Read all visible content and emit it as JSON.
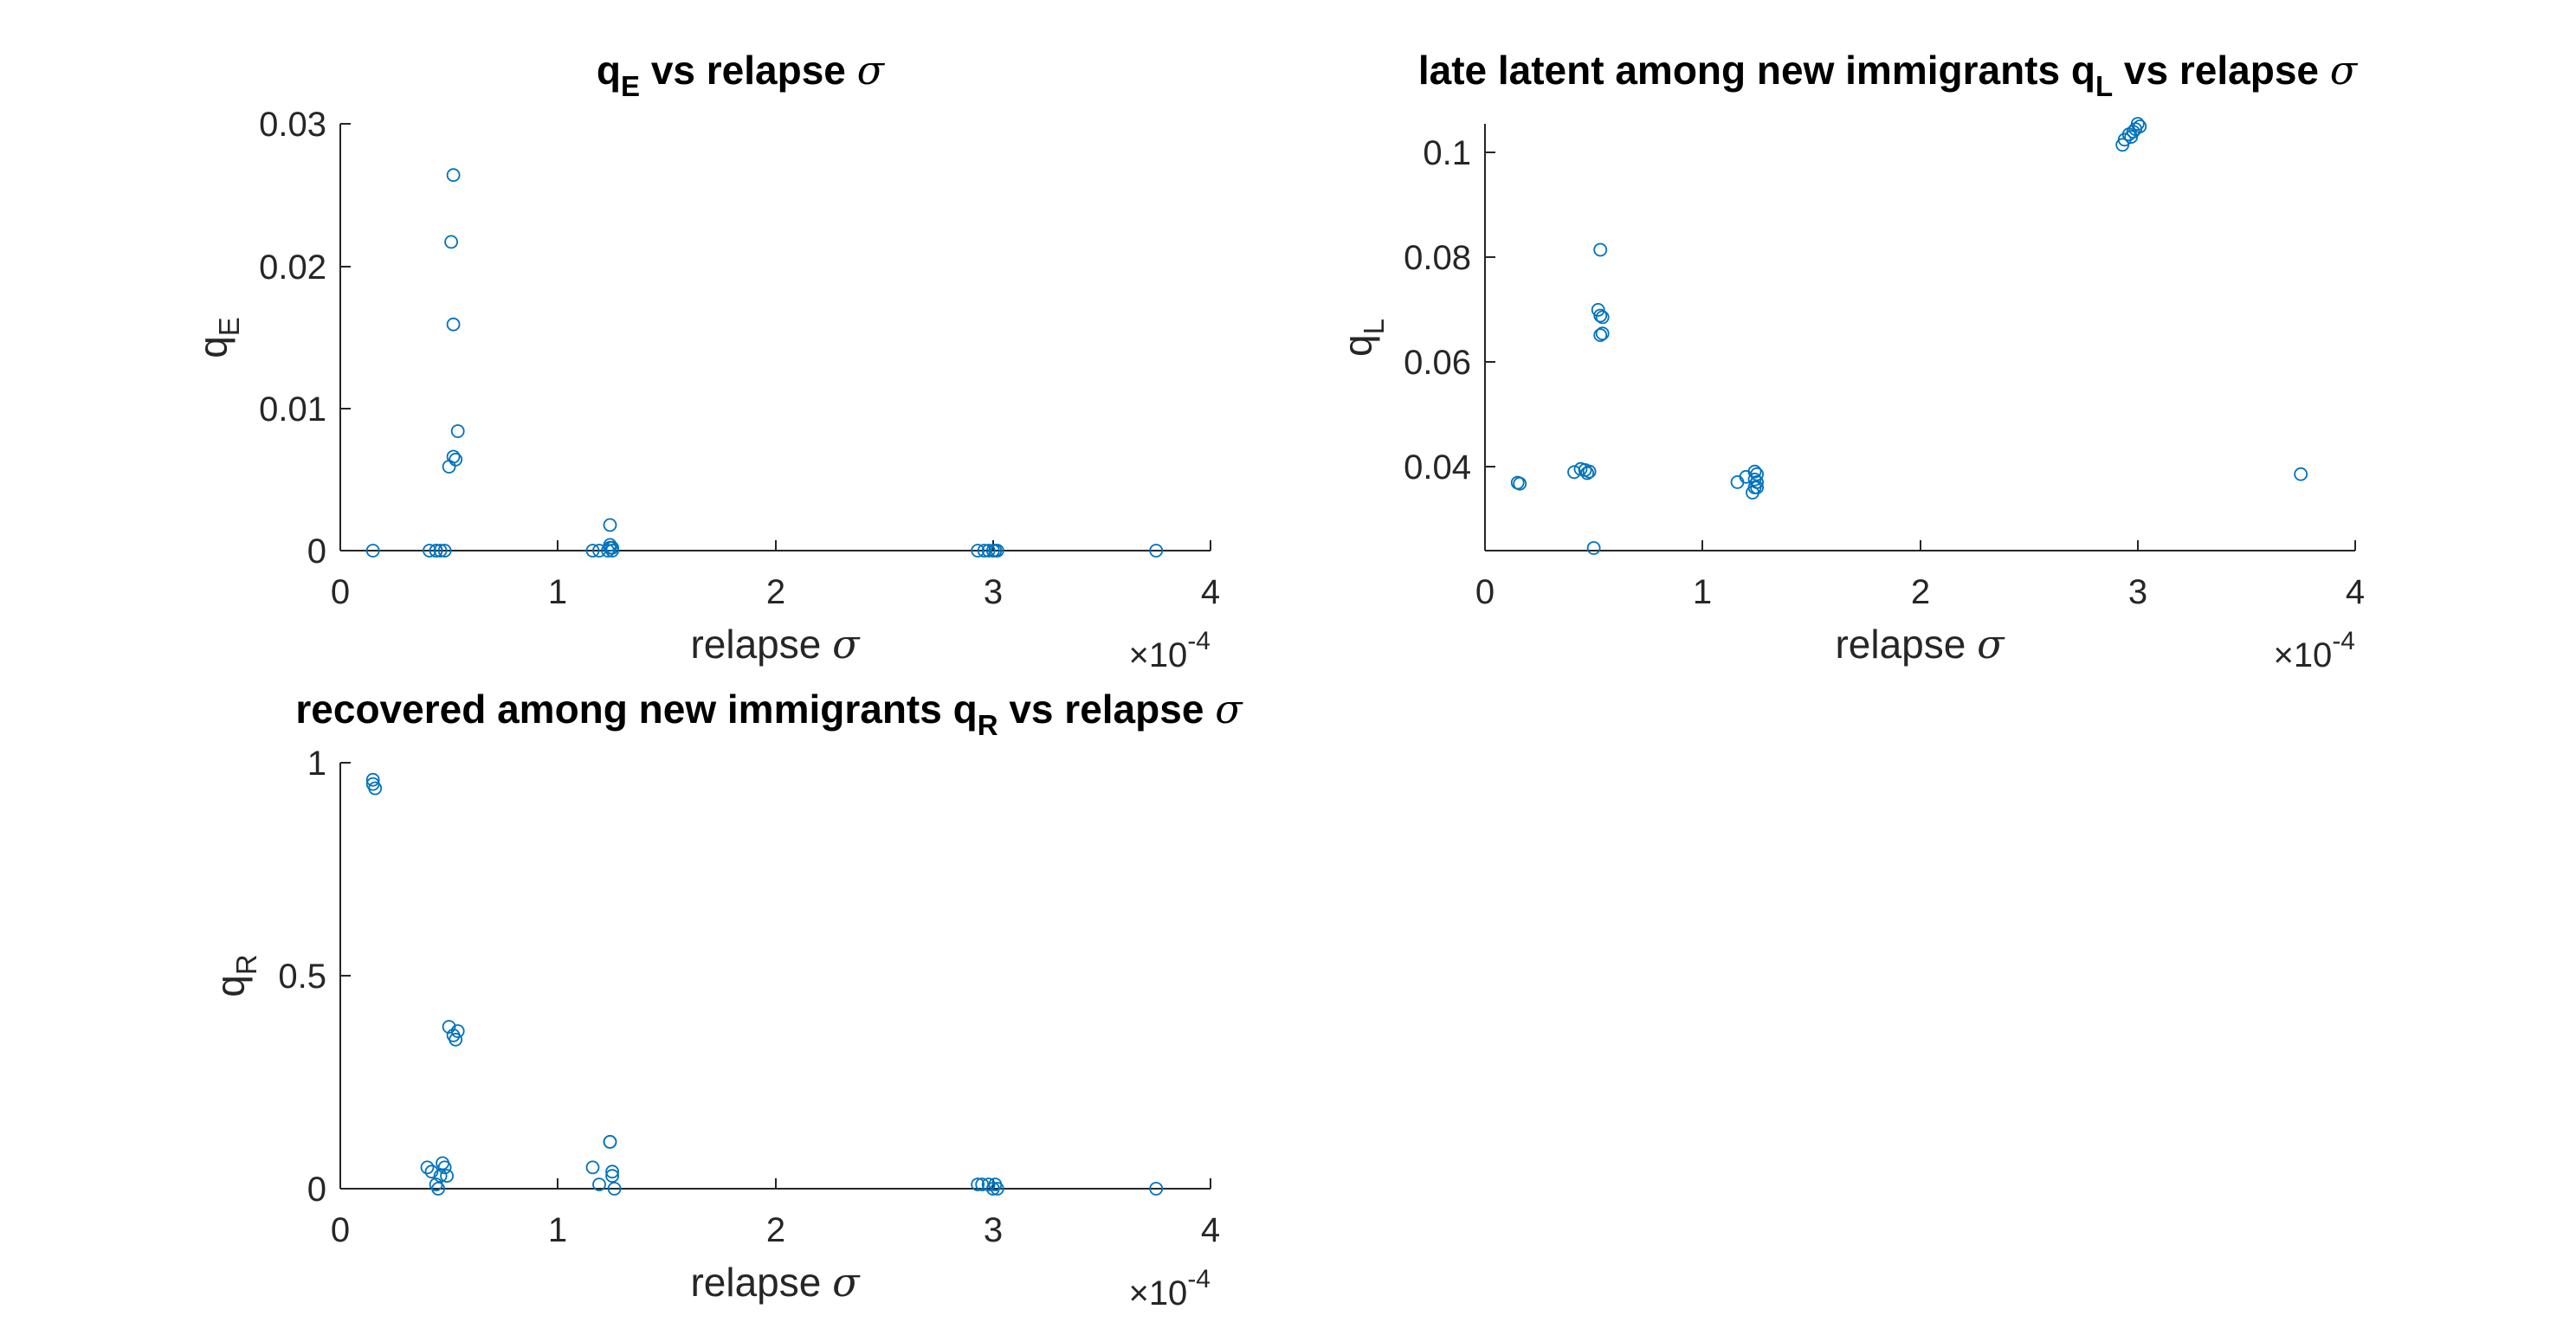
{
  "chart_data": [
    {
      "type": "scatter",
      "title": {
        "main": "q",
        "sub": "E",
        "rest": " vs relapse ",
        "greek": "σ"
      },
      "xlabel": {
        "text": "relapse ",
        "greek": "σ"
      },
      "ylabel": {
        "main": "q",
        "sub": "E"
      },
      "x_multiplier": {
        "base": "×10",
        "exp": "-4"
      },
      "xlim": [
        0,
        4
      ],
      "ylim": [
        0,
        0.03
      ],
      "xticks": [
        "0",
        "1",
        "2",
        "3",
        "4"
      ],
      "yticks": [
        "0",
        "0.01",
        "0.02",
        "0.03"
      ],
      "marker_color": "#0072BD",
      "x": [
        0.15,
        0.41,
        0.44,
        0.46,
        0.48,
        0.44,
        0.5,
        0.52,
        0.53,
        0.54,
        0.52,
        0.51,
        0.52,
        1.16,
        1.19,
        1.23,
        1.24,
        1.24,
        1.25,
        1.24,
        1.25,
        2.93,
        2.96,
        2.98,
        3.0,
        3.01,
        3.02,
        3.75
      ],
      "y": [
        0,
        0,
        0,
        0,
        0,
        0,
        0.0059,
        0.0066,
        0.0064,
        0.0084,
        0.0159,
        0.0217,
        0.0264,
        0,
        0,
        0,
        0.0002,
        0.0004,
        0.0002,
        0.0018,
        0,
        0,
        0,
        0,
        0,
        0,
        0,
        0
      ]
    },
    {
      "type": "scatter",
      "title": {
        "main": "late latent among new immigrants q",
        "sub": "L",
        "rest": " vs relapse ",
        "greek": "σ"
      },
      "xlabel": {
        "text": "relapse ",
        "greek": "σ"
      },
      "ylabel": {
        "main": "q",
        "sub": "L"
      },
      "x_multiplier": {
        "base": "×10",
        "exp": "-4"
      },
      "xlim": [
        0,
        4
      ],
      "ylim": [
        0.024,
        0.105
      ],
      "xticks": [
        "0",
        "1",
        "2",
        "3",
        "4"
      ],
      "yticks": [
        "0.04",
        "0.06",
        "0.08",
        "0.1"
      ],
      "ytick_values": [
        0.04,
        0.06,
        0.08,
        0.1
      ],
      "marker_color": "#0072BD",
      "x": [
        0.15,
        0.16,
        0.41,
        0.44,
        0.46,
        0.47,
        0.48,
        0.5,
        0.53,
        0.52,
        0.53,
        0.54,
        0.53,
        0.54,
        1.16,
        1.2,
        1.23,
        1.24,
        1.24,
        1.25,
        1.24,
        1.25,
        1.25,
        2.93,
        2.94,
        2.96,
        2.97,
        2.98,
        2.99,
        3.0,
        3.01,
        3.75
      ],
      "y": [
        0.0369,
        0.0367,
        0.0389,
        0.0395,
        0.0393,
        0.0387,
        0.039,
        0.0245,
        0.0811,
        0.0697,
        0.0686,
        0.0652,
        0.0649,
        0.0683,
        0.037,
        0.038,
        0.035,
        0.036,
        0.0375,
        0.0385,
        0.039,
        0.037,
        0.036,
        0.101,
        0.102,
        0.103,
        0.1025,
        0.1035,
        0.104,
        0.105,
        0.1045,
        0.0385
      ]
    },
    {
      "type": "scatter",
      "title": {
        "main": "recovered among new immigrants q",
        "sub": "R",
        "rest": " vs relapse ",
        "greek": "σ"
      },
      "xlabel": {
        "text": "relapse ",
        "greek": "σ"
      },
      "ylabel": {
        "main": "q",
        "sub": "R"
      },
      "x_multiplier": {
        "base": "×10",
        "exp": "-4"
      },
      "xlim": [
        0,
        4
      ],
      "ylim": [
        0,
        1
      ],
      "xticks": [
        "0",
        "1",
        "2",
        "3",
        "4"
      ],
      "yticks": [
        "0",
        "0.5",
        "1"
      ],
      "marker_color": "#0072BD",
      "x": [
        0.15,
        0.15,
        0.16,
        0.4,
        0.42,
        0.44,
        0.45,
        0.46,
        0.47,
        0.48,
        0.49,
        0.5,
        0.52,
        0.53,
        0.54,
        1.16,
        1.19,
        1.24,
        1.24,
        1.25,
        1.25,
        1.26,
        2.93,
        2.95,
        2.98,
        3.0,
        3.01,
        3.02,
        3.75
      ],
      "y": [
        0.96,
        0.95,
        0.94,
        0.05,
        0.04,
        0.01,
        0.0,
        0.03,
        0.06,
        0.05,
        0.03,
        0.38,
        0.36,
        0.35,
        0.37,
        0.05,
        0.01,
        0.11,
        0.11,
        0.04,
        0.03,
        0.0,
        0.01,
        0.01,
        0.01,
        0.0,
        0.01,
        0.0,
        0.0
      ]
    }
  ]
}
